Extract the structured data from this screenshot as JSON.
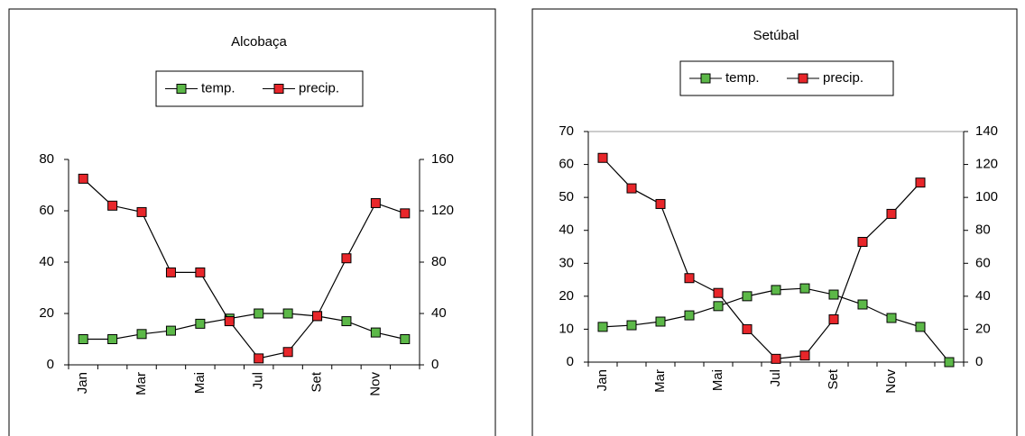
{
  "chart_data": [
    {
      "type": "line",
      "title": "Alcobaça",
      "categories": [
        "Jan",
        null,
        "Mar",
        null,
        "Mai",
        null,
        "Jul",
        null,
        "Set",
        null,
        "Nov",
        null
      ],
      "series": [
        {
          "name": "temp.",
          "color": "#5cb848",
          "values": [
            10,
            10,
            12,
            13.3,
            16,
            18,
            20,
            20,
            19,
            17,
            12.6,
            10
          ]
        },
        {
          "name": "precip.",
          "color": "#e8262a",
          "axis": "y2",
          "values": [
            145,
            124,
            119,
            72,
            72,
            34,
            5,
            10,
            38,
            83,
            126,
            118
          ]
        }
      ],
      "ylim": [
        0,
        80
      ],
      "yticks": [
        0,
        20,
        40,
        60,
        80
      ],
      "y2lim": [
        0,
        160
      ],
      "y2ticks": [
        0,
        40,
        80,
        120,
        160
      ],
      "legend": "top"
    },
    {
      "type": "line",
      "title": "Setúbal",
      "categories": [
        "Jan",
        null,
        "Mar",
        null,
        "Mai",
        null,
        "Jul",
        null,
        "Set",
        null,
        "Nov",
        null,
        null
      ],
      "series": [
        {
          "name": "temp.",
          "color": "#5cb848",
          "values": [
            10.7,
            11.2,
            12.3,
            14.2,
            17,
            20,
            21.9,
            22.4,
            20.5,
            17.5,
            13.4,
            10.7,
            0
          ]
        },
        {
          "name": "precip.",
          "color": "#e8262a",
          "axis": "y2",
          "values": [
            124,
            105.5,
            96,
            51,
            42,
            20,
            2,
            4,
            26,
            73,
            90,
            109,
            null
          ]
        }
      ],
      "ylim": [
        0,
        70
      ],
      "yticks": [
        0,
        10,
        20,
        30,
        40,
        50,
        60,
        70
      ],
      "y2lim": [
        0,
        140
      ],
      "y2ticks": [
        0,
        20,
        40,
        60,
        80,
        100,
        120,
        140
      ],
      "legend": "top"
    }
  ]
}
